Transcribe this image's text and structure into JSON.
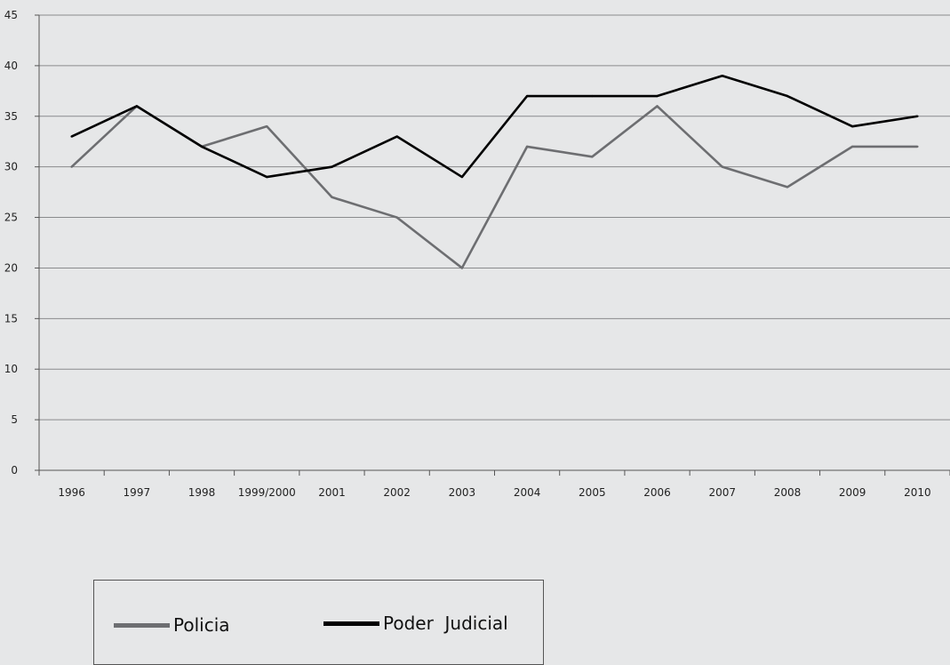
{
  "chart_data": {
    "type": "line",
    "categories": [
      "1996",
      "1997",
      "1998",
      "1999/2000",
      "2001",
      "2002",
      "2003",
      "2004",
      "2005",
      "2006",
      "2007",
      "2008",
      "2009",
      "2010"
    ],
    "series": [
      {
        "name": "Policia",
        "color": "#6d6e71",
        "values": [
          30,
          36,
          32,
          34,
          27,
          25,
          20,
          32,
          31,
          36,
          30,
          28,
          32,
          32
        ]
      },
      {
        "name": "Poder  Judicial",
        "color": "#000000",
        "values": [
          33,
          36,
          32,
          29,
          30,
          33,
          29,
          37,
          37,
          37,
          39,
          37,
          34,
          35
        ]
      }
    ],
    "yticks": [
      "0",
      "5",
      "10",
      "15",
      "20",
      "25",
      "30",
      "35",
      "40",
      "45"
    ],
    "ylim": [
      0,
      45
    ],
    "grid": true,
    "legend_position": "bottom-left"
  },
  "legend": {
    "items": [
      {
        "label": "Policia",
        "color": "#6d6e71"
      },
      {
        "label": "Poder  Judicial",
        "color": "#000000"
      }
    ]
  }
}
